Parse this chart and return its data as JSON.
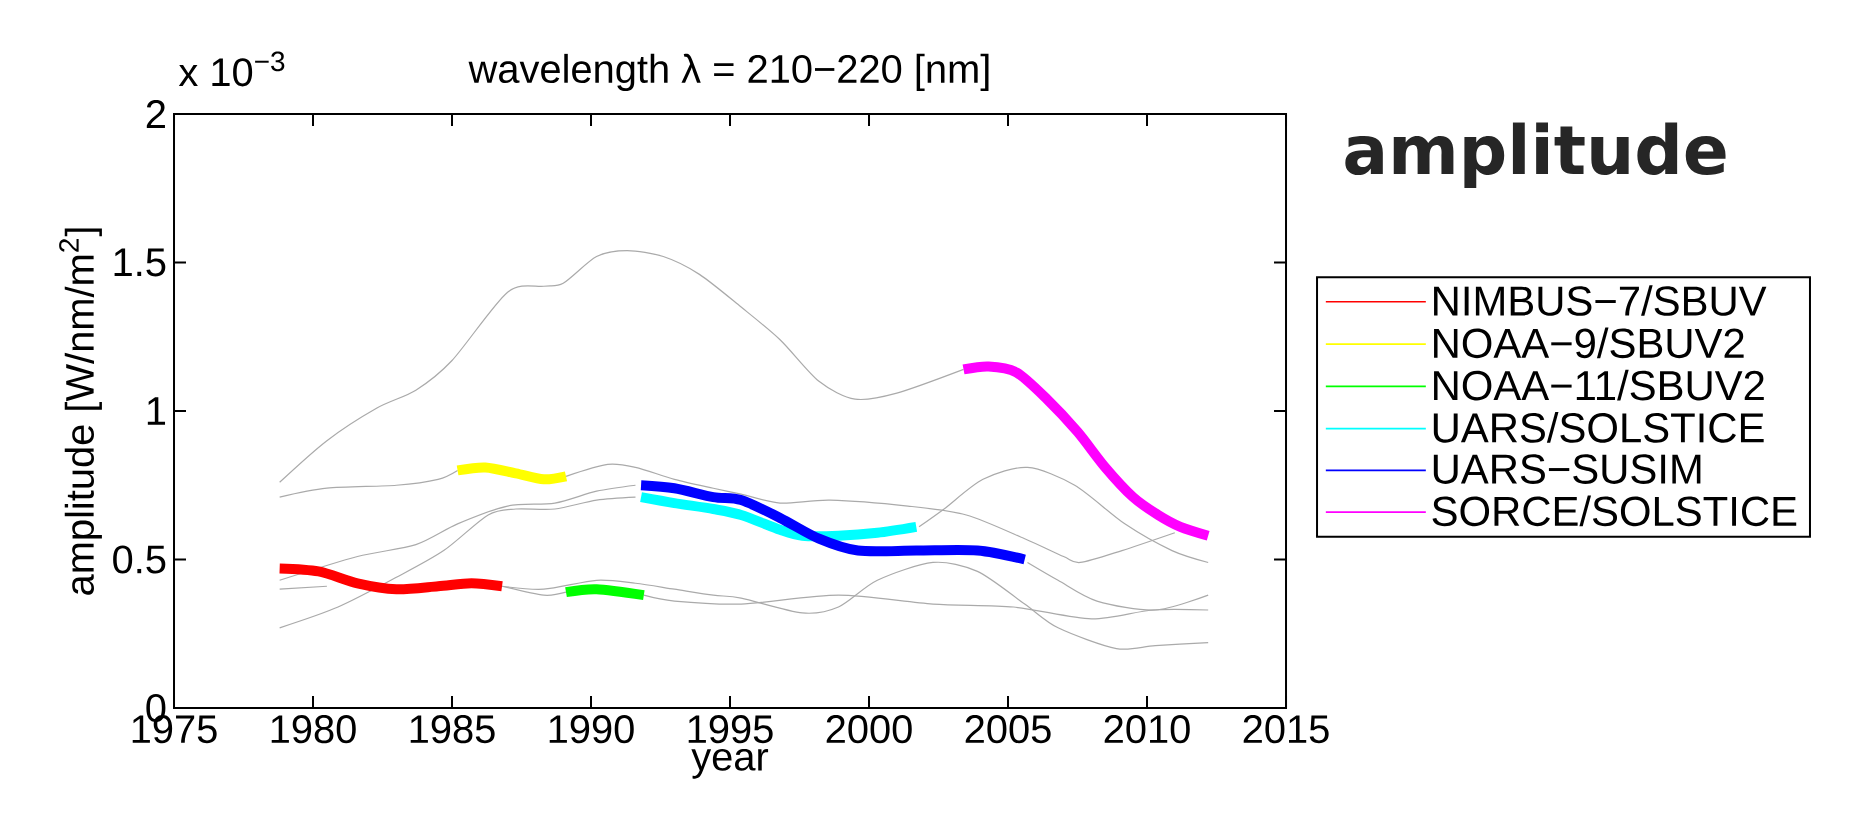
{
  "chart_data": {
    "type": "line",
    "title": "wavelength λ = 210−220 [nm]",
    "xlabel": "year",
    "ylabel": "amplitude [W/nm/m$^{2}$]",
    "annotations": [
      "x 10$^{−3}$",
      "amplitude"
    ],
    "xlim": [
      1975,
      2015
    ],
    "xticks": [
      1975,
      1980,
      1985,
      1990,
      1995,
      2000,
      2005,
      2010,
      2015
    ],
    "ylim": [
      0,
      2
    ],
    "yticks": [
      0,
      0.5,
      1,
      1.5,
      2
    ],
    "legend": "right",
    "series": [
      {
        "color": "#aaaaaa",
        "x": [
          1978.8,
          1980.5,
          1982.3,
          1983.7,
          1985.0,
          1987.0,
          1988.3,
          1989.0,
          1990.2,
          1991.3,
          1992.6,
          1993.9,
          1995.4,
          1996.8,
          1998.2,
          1999.5,
          2001.0,
          2003.4
        ],
        "values": [
          0.76,
          0.9,
          1.01,
          1.07,
          1.17,
          1.4,
          1.42,
          1.43,
          1.52,
          1.54,
          1.52,
          1.46,
          1.35,
          1.24,
          1.1,
          1.04,
          1.06,
          1.14
        ]
      },
      {
        "color": "#aaaaaa",
        "x": [
          1978.8,
          1980.5,
          1983.0,
          1984.5,
          1985.2,
          1987.0,
          1989.1,
          1990.6,
          1991.6,
          1993.0,
          1994.4,
          1995.4,
          1996.8,
          1998.6,
          2001.4,
          2003.5,
          2005.6,
          2007.0,
          2007.6,
          2009.1,
          2011.0
        ],
        "values": [
          0.71,
          0.74,
          0.75,
          0.77,
          0.8,
          null,
          0.78,
          0.82,
          0.81,
          0.77,
          0.74,
          0.72,
          0.69,
          0.7,
          0.68,
          0.65,
          0.57,
          0.51,
          0.49,
          0.53,
          0.59
        ]
      },
      {
        "color": "#aaaaaa",
        "x": [
          1978.8,
          1981.6,
          1983.7,
          1985.2,
          1987.0,
          1988.7,
          1990.2,
          1991.6,
          2000.0,
          2005.7,
          2006.8,
          2008.2,
          2010.3,
          2012.2
        ],
        "values": [
          0.43,
          0.51,
          0.55,
          0.62,
          0.68,
          0.69,
          0.73,
          0.75,
          null,
          0.49,
          0.43,
          0.36,
          0.33,
          0.38
        ]
      },
      {
        "color": "#aaaaaa",
        "x": [
          1978.8,
          1980.5,
          1983.5,
          1986.8,
          1988.3,
          1990.2,
          1991.6,
          1993.0,
          1994.4,
          1995.4,
          1997.6,
          1998.9,
          2000.3,
          2002.3,
          2003.9,
          2005.6,
          2006.8,
          2008.9,
          2010.3,
          2012.2
        ],
        "values": [
          0.4,
          0.41,
          null,
          0.41,
          0.4,
          0.43,
          0.42,
          0.4,
          0.38,
          0.37,
          0.32,
          0.34,
          0.43,
          0.49,
          0.46,
          0.35,
          0.27,
          0.2,
          0.21,
          0.22
        ]
      },
      {
        "color": "#aaaaaa",
        "x": [
          1978.8,
          1980.9,
          1983.0,
          1984.7,
          1986.3,
          1987.3,
          1988.7,
          1990.2,
          1991.6,
          1997.0,
          2001.8,
          2002.7,
          2004.1,
          2005.7,
          2007.4,
          2009.2,
          2010.9,
          2012.2
        ],
        "values": [
          0.27,
          0.34,
          0.44,
          0.53,
          0.65,
          0.67,
          0.67,
          0.7,
          0.71,
          null,
          0.61,
          0.67,
          0.77,
          0.81,
          0.75,
          0.62,
          0.53,
          0.49
        ]
      },
      {
        "color": "#aaaaaa",
        "x": [
          1986.8,
          1988.3,
          1989.1,
          1990.5,
          1991.9,
          1993.0,
          1995.4,
          1998.9,
          2002.3,
          2005.2,
          2008.0,
          2010.2,
          2012.2
        ],
        "values": [
          0.41,
          0.38,
          0.39,
          null,
          0.38,
          0.36,
          0.35,
          0.38,
          0.35,
          0.34,
          0.3,
          0.33,
          0.33
        ]
      },
      {
        "name": "NIMBUS−7/SBUV",
        "color": "#ff0000",
        "x": [
          1978.8,
          1980.2,
          1981.6,
          1983.0,
          1984.5,
          1985.7,
          1986.8
        ],
        "values": [
          0.47,
          0.46,
          0.42,
          0.4,
          0.41,
          0.42,
          0.41
        ]
      },
      {
        "name": "NOAA−9/SBUV2",
        "color": "#ffff00",
        "x": [
          1985.2,
          1986.2,
          1987.3,
          1988.3,
          1989.1
        ],
        "values": [
          0.8,
          0.81,
          0.79,
          0.77,
          0.78
        ]
      },
      {
        "name": "NOAA−11/SBUV2",
        "color": "#00ff00",
        "x": [
          1989.1,
          1990.2,
          1991.9
        ],
        "values": [
          0.39,
          0.4,
          0.38
        ]
      },
      {
        "name": "UARS/SOLSTICE",
        "color": "#00ffff",
        "x": [
          1991.8,
          1993.0,
          1994.4,
          1995.4,
          1996.8,
          1997.6,
          1998.9,
          2000.3,
          2001.7
        ],
        "values": [
          0.71,
          0.69,
          0.67,
          0.65,
          0.6,
          0.58,
          0.58,
          0.59,
          0.61
        ]
      },
      {
        "name": "UARS−SUSIM",
        "color": "#0000ff",
        "x": [
          1991.8,
          1993.0,
          1994.4,
          1995.4,
          1996.8,
          1998.2,
          1999.6,
          2001.7,
          2003.9,
          2005.6
        ],
        "values": [
          0.75,
          0.74,
          0.71,
          0.7,
          0.64,
          0.57,
          0.53,
          0.53,
          0.53,
          0.5
        ]
      },
      {
        "name": "SORCE/SOLSTICE",
        "color": "#ff00ff",
        "x": [
          2003.4,
          2004.3,
          2005.3,
          2006.4,
          2007.5,
          2008.5,
          2009.5,
          2010.4,
          2011.2,
          2012.2
        ],
        "values": [
          1.14,
          1.15,
          1.13,
          1.04,
          0.93,
          0.81,
          0.71,
          0.65,
          0.61,
          0.58
        ]
      }
    ]
  }
}
